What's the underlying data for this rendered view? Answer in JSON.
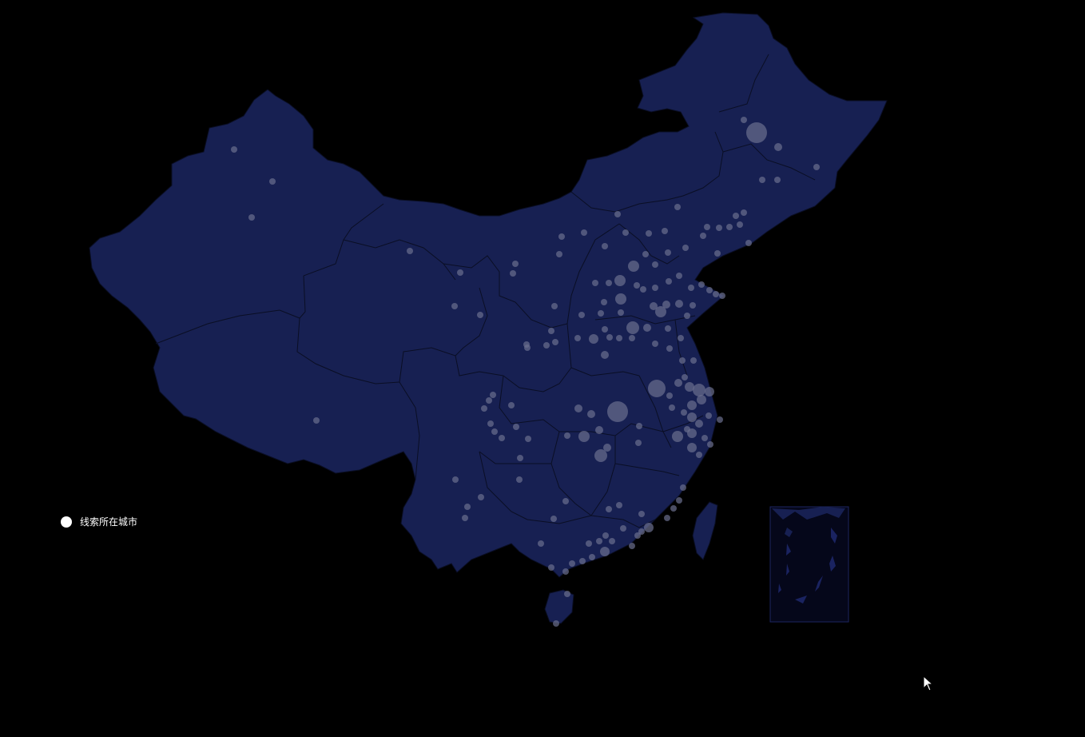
{
  "legend": {
    "label": "线索所在城市",
    "dot_color": "#ffffff"
  },
  "map": {
    "region": "China",
    "land_color": "#172052",
    "border_color": "#0a0e24",
    "background": "#000000",
    "inset": "south-china-sea-islands",
    "point_color": "#6b6f8e"
  },
  "cursor_icon": "arrow-pointer-icon"
}
